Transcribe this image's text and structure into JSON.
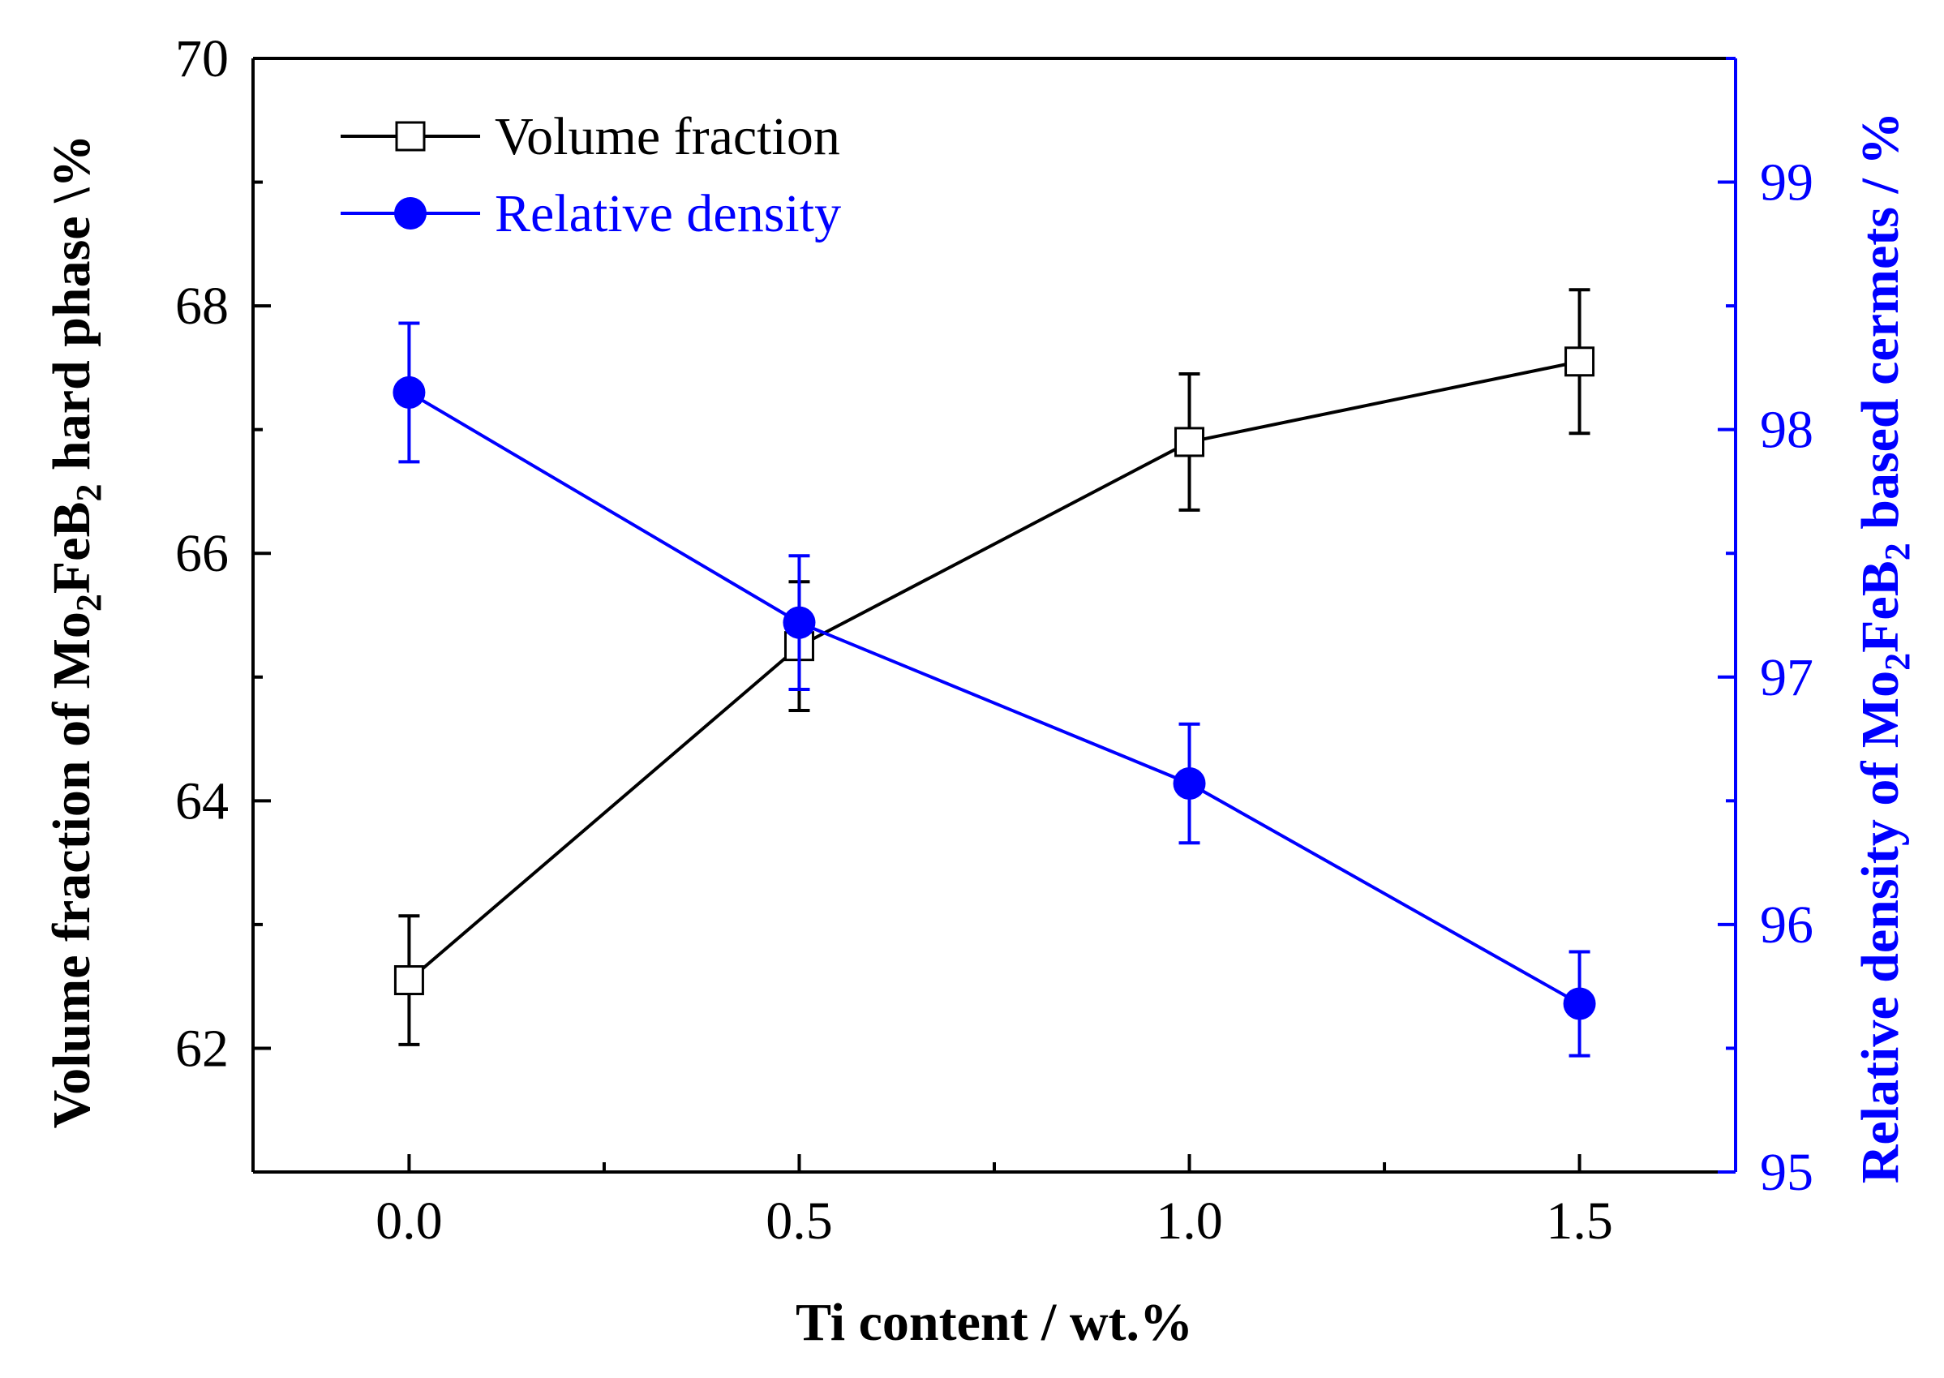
{
  "chart_data": {
    "type": "line",
    "title": "",
    "xlabel": "Ti content / wt.%",
    "ylabel_left": {
      "prefix": "Volume fraction of Mo",
      "sub1": "2",
      "mid": "FeB",
      "sub2": "2",
      "suffix": " hard phase \\%"
    },
    "ylabel_right": {
      "prefix": "Relative density of Mo",
      "sub1": "2",
      "mid": "FeB",
      "sub2": "2",
      "suffix": " based cermets / %"
    },
    "xlim": [
      -0.2,
      1.7
    ],
    "ylim_left": [
      61,
      70
    ],
    "ylim_right": [
      95,
      99.5
    ],
    "x_ticks": [
      "0.0",
      "0.5",
      "1.0",
      "1.5"
    ],
    "y_left_ticks": [
      "62",
      "64",
      "66",
      "68",
      "70"
    ],
    "y_right_ticks": [
      "95",
      "96",
      "97",
      "98",
      "99"
    ],
    "legend_position": "top-left",
    "series": [
      {
        "name": "Volume fraction",
        "axis": "left",
        "color": "#000000",
        "marker": "open-square",
        "x": [
          0.0,
          0.5,
          1.0,
          1.5
        ],
        "values": [
          62.55,
          65.25,
          66.9,
          67.55
        ],
        "errors": [
          0.52,
          0.52,
          0.55,
          0.58
        ]
      },
      {
        "name": "Relative density",
        "axis": "right",
        "color": "#0000ff",
        "marker": "filled-circle",
        "x": [
          0.0,
          0.5,
          1.0,
          1.5
        ],
        "values": [
          98.15,
          97.22,
          96.57,
          95.68
        ],
        "errors": [
          0.28,
          0.27,
          0.24,
          0.21
        ]
      }
    ]
  }
}
